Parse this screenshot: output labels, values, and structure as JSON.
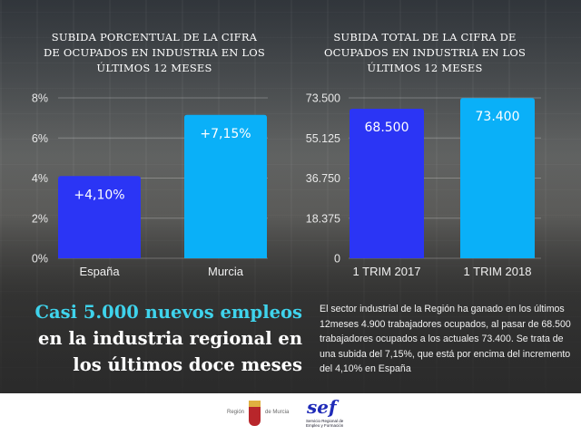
{
  "chart_data": [
    {
      "type": "bar",
      "title": "SUBIDA PORCENTUAL DE LA CIFRA\nDE OCUPADOS EN INDUSTRIA EN LOS\nÚLTIMOS 12 MESES",
      "categories": [
        "España",
        "Murcia"
      ],
      "values": [
        4.1,
        7.15
      ],
      "data_labels": [
        "+4,10%",
        "+7,15%"
      ],
      "colors": [
        "#2b35f5",
        "#0ab0f8"
      ],
      "ylim": [
        0,
        8
      ],
      "yticks": [
        "0%",
        "2%",
        "4%",
        "6%",
        "8%"
      ],
      "ytick_values": [
        0,
        2,
        4,
        6,
        8
      ],
      "grid": true
    },
    {
      "type": "bar",
      "title": "SUBIDA TOTAL DE LA CIFRA DE\nOCUPADOS EN INDUSTRIA EN LOS\nÚLTIMOS 12 MESES",
      "categories": [
        "1 TRIM 2017",
        "1 TRIM 2018"
      ],
      "values": [
        68500,
        73400
      ],
      "data_labels": [
        "68.500",
        "73.400"
      ],
      "colors": [
        "#2b35f5",
        "#0ab0f8"
      ],
      "ylim": [
        0,
        73500
      ],
      "yticks": [
        "0",
        "18.375",
        "36.750",
        "55.125",
        "73.500"
      ],
      "ytick_values": [
        0,
        18375,
        36750,
        55125,
        73500
      ],
      "grid": true
    }
  ],
  "headline": [
    "Casi 5.000 nuevos empleos",
    "en la industria regional en",
    "los últimos doce meses"
  ],
  "body": "El sector industrial de la Región ha ganado en los últimos 12meses 4.900 trabajadores ocupados, al pasar de 68.500 trabajadores ocupados a los actuales 73.400. Se trata de una subida del 7,15%, que está por encima del incremento del 4,10% en España",
  "footer": {
    "logo1_left": "Región",
    "logo1_right": "de Murcia",
    "logo2": "sef",
    "logo2_sub": "Servicio Regional de Empleo y Formación"
  },
  "colors": {
    "headline_accent": "#3fd3ec"
  }
}
